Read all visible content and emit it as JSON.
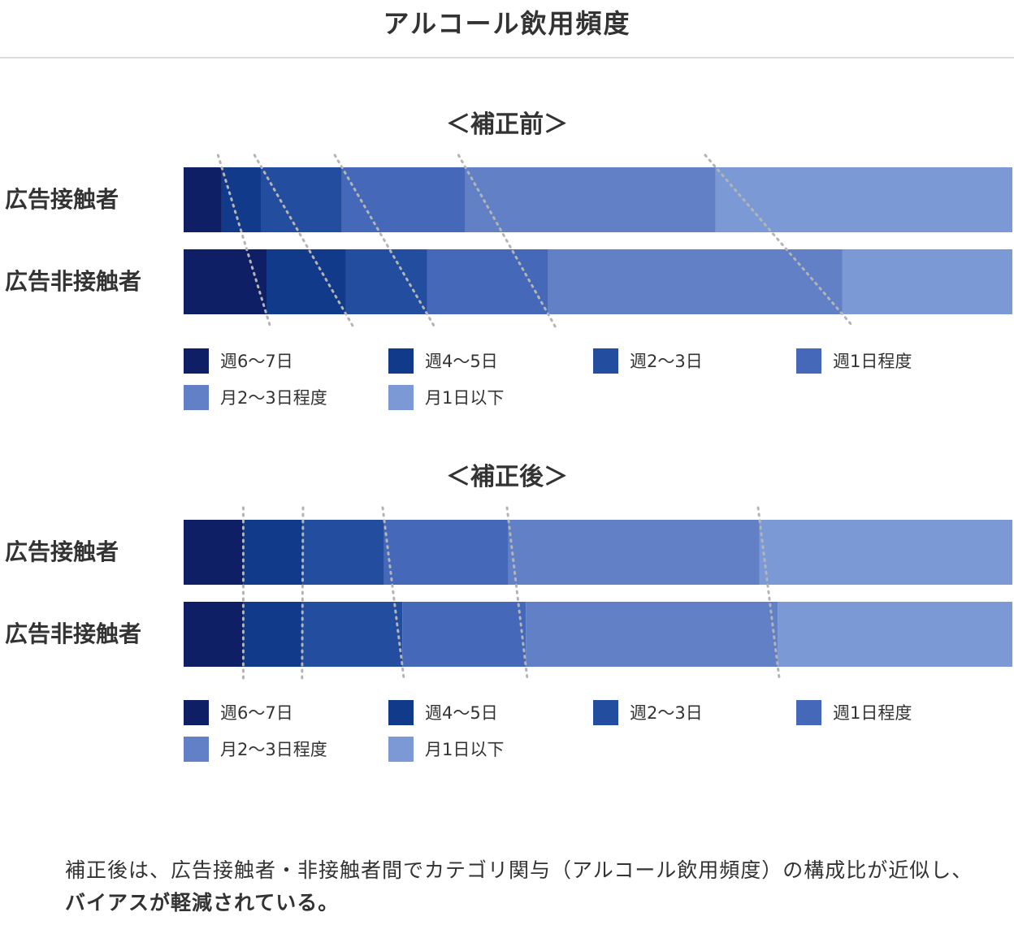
{
  "page": {
    "title": "アルコール飲用頻度"
  },
  "colors": {
    "series": [
      "#0f1f66",
      "#113b8a",
      "#234d9f",
      "#4668b8",
      "#6180c5",
      "#7b9ad5"
    ],
    "guide": "#b4b4b4",
    "rule": "#dcdcdc"
  },
  "chart_data": [
    {
      "type": "bar",
      "orientation": "horizontal",
      "stacked": true,
      "title": "＜補正前＞",
      "categories": [
        "広告接触者",
        "広告非接触者"
      ],
      "xlim": [
        0,
        100
      ],
      "series": [
        {
          "name": "週6〜7日",
          "values": [
            4.6,
            10.0
          ]
        },
        {
          "name": "週4〜5日",
          "values": [
            4.8,
            9.6
          ]
        },
        {
          "name": "週2〜3日",
          "values": [
            9.7,
            9.8
          ]
        },
        {
          "name": "週1日程度",
          "values": [
            14.9,
            14.6
          ]
        },
        {
          "name": "月2〜3日程度",
          "values": [
            30.2,
            35.5
          ]
        },
        {
          "name": "月1日以下",
          "values": [
            35.8,
            20.5
          ]
        }
      ],
      "legend_position": "bottom"
    },
    {
      "type": "bar",
      "orientation": "horizontal",
      "stacked": true,
      "title": "＜補正後＞",
      "categories": [
        "広告接触者",
        "広告非接触者"
      ],
      "xlim": [
        0,
        100
      ],
      "series": [
        {
          "name": "週6〜7日",
          "values": [
            7.2,
            7.2
          ]
        },
        {
          "name": "週4〜5日",
          "values": [
            7.2,
            7.1
          ]
        },
        {
          "name": "週2〜3日",
          "values": [
            9.8,
            12.1
          ]
        },
        {
          "name": "週1日程度",
          "values": [
            15.0,
            14.9
          ]
        },
        {
          "name": "月2〜3日程度",
          "values": [
            30.3,
            30.4
          ]
        },
        {
          "name": "月1日以下",
          "values": [
            30.5,
            28.3
          ]
        }
      ],
      "legend_position": "bottom"
    }
  ],
  "footnote": {
    "text_plain": "補正後は、広告接触者・非接触者間でカテゴリ関与（アルコール飲用頻度）の構成比が近似し、",
    "text_bold": "バイアスが軽減されている。"
  }
}
